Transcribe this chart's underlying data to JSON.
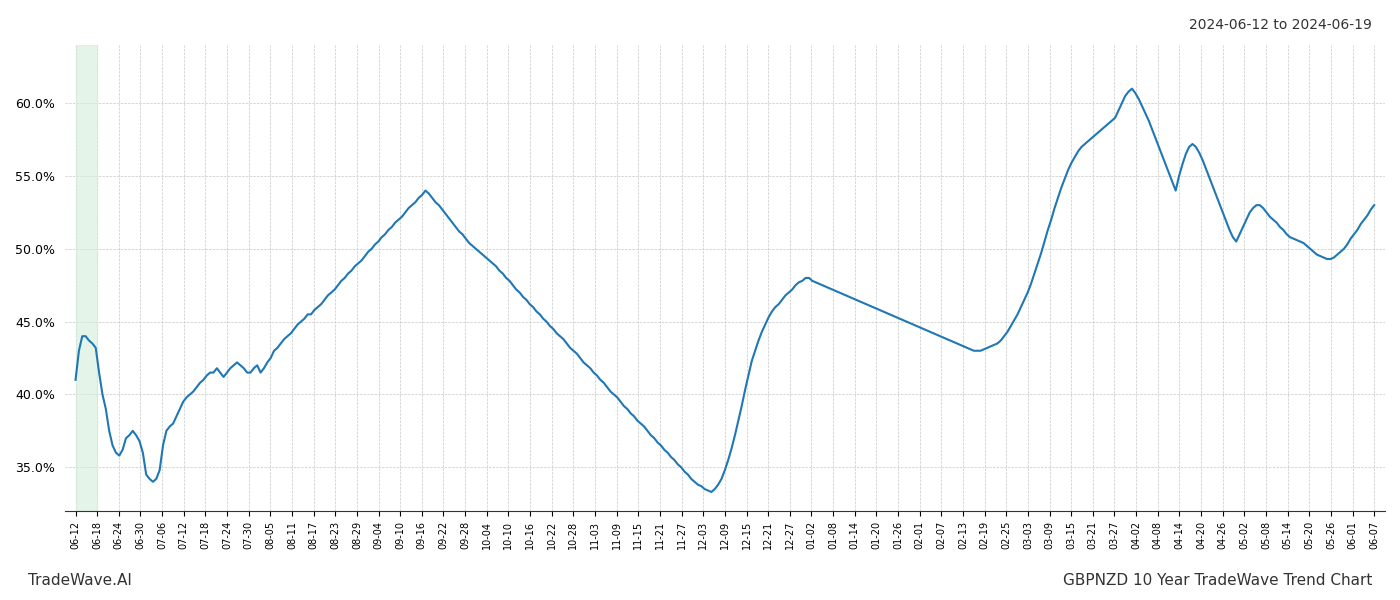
{
  "title_top_right": "2024-06-12 to 2024-06-19",
  "title_bottom_left": "TradeWave.AI",
  "title_bottom_right": "GBPNZD 10 Year TradeWave Trend Chart",
  "line_color": "#1f77b4",
  "line_width": 1.5,
  "background_color": "#ffffff",
  "grid_color": "#c8c8c8",
  "highlight_color": "#d4edda",
  "ylim": [
    0.32,
    0.64
  ],
  "yticks": [
    0.35,
    0.4,
    0.45,
    0.5,
    0.55,
    0.6
  ],
  "x_labels": [
    "06-12\n06-\n0",
    "06-18\n06-\n0",
    "06-24\n06-\n0",
    "06-30\n06-\n0",
    "07-06\n07-\n0",
    "07-12\n07-\n0",
    "07-18\n07-\n0",
    "07-24\n07-\n0",
    "07-30\n07-\n0",
    "08-05\n08-\n0",
    "08-11\n08-\n0",
    "08-17\n08-\n0",
    "08-23\n08-\n0",
    "08-29\n08-\n0",
    "09-04\n09-\n0",
    "09-10\n09-\n0",
    "09-16\n09-\n0",
    "09-22\n09-\n0",
    "09-28\n09-\n0",
    "10-04\n10-\n0",
    "10-10\n10-\n0",
    "10-16\n10-\n1",
    "10-22\n10-\n1",
    "10-28\n10-\n1",
    "11-03\n11-\n1",
    "11-09\n11-\n1",
    "11-15\n11-\n1",
    "11-21\n11-\n1",
    "11-27\n11-\n1",
    "12-03\n12-\n1",
    "12-09\n12-\n1",
    "12-15\n12-\n1",
    "12-21\n12-\n1",
    "12-27\n12-\n1",
    "01-02\n01-\n0",
    "01-08\n01-\n0",
    "01-14\n01-\n0",
    "01-20\n01-\n0",
    "01-26\n01-\n0",
    "02-01\n02-\n0",
    "02-07\n02-\n0",
    "02-13\n02-\n0",
    "02-19\n02-\n0",
    "02-25\n02-\n0",
    "03-03\n03-\n0",
    "03-09\n03-\n0",
    "03-15\n03-\n0",
    "03-21\n03-\n0",
    "03-27\n03-\n0",
    "04-02\n04-\n0",
    "04-08\n04-\n0",
    "04-14\n04-\n0",
    "04-20\n04-\n0",
    "04-26\n04-\n0",
    "05-02\n05-\n0",
    "05-08\n05-\n0",
    "05-14\n05-\n0",
    "05-20\n05-\n0",
    "05-26\n05-\n0",
    "06-01\n06-\n0",
    "06-07\n06-\n0"
  ],
  "x_labels_simple": [
    "06-12",
    "06-18",
    "06-24",
    "06-30",
    "07-06",
    "07-12",
    "07-18",
    "07-24",
    "07-30",
    "08-05",
    "08-11",
    "08-17",
    "08-23",
    "08-29",
    "09-04",
    "09-10",
    "09-16",
    "09-22",
    "09-28",
    "10-04",
    "10-10",
    "10-16",
    "10-22",
    "10-28",
    "11-03",
    "11-09",
    "11-15",
    "11-21",
    "11-27",
    "12-03",
    "12-09",
    "12-15",
    "12-21",
    "12-27",
    "01-02",
    "01-08",
    "01-14",
    "01-20",
    "01-26",
    "02-01",
    "02-07",
    "02-13",
    "02-19",
    "02-25",
    "03-03",
    "03-09",
    "03-15",
    "03-21",
    "03-27",
    "04-02",
    "04-08",
    "04-14",
    "04-20",
    "04-26",
    "05-02",
    "05-08",
    "05-14",
    "05-20",
    "05-26",
    "06-01",
    "06-07"
  ],
  "x_labels_year": [
    "0",
    "0",
    "0",
    "0",
    "0",
    "0",
    "0",
    "0",
    "0",
    "0",
    "0",
    "0",
    "0",
    "0",
    "0",
    "0",
    "0",
    "0",
    "0",
    "0",
    "0",
    "1",
    "1",
    "1",
    "1",
    "1",
    "1",
    "1",
    "1",
    "1",
    "1",
    "1",
    "1",
    "1",
    "0",
    "0",
    "0",
    "0",
    "0",
    "0",
    "0",
    "0",
    "0",
    "0",
    "0",
    "0",
    "0",
    "0",
    "0",
    "0",
    "0",
    "0",
    "0",
    "0",
    "0",
    "0",
    "0",
    "0",
    "0",
    "0",
    "0"
  ],
  "y_values": [
    0.41,
    0.43,
    0.44,
    0.44,
    0.437,
    0.435,
    0.432,
    0.415,
    0.4,
    0.39,
    0.375,
    0.365,
    0.36,
    0.358,
    0.362,
    0.37,
    0.372,
    0.375,
    0.372,
    0.368,
    0.36,
    0.345,
    0.342,
    0.34,
    0.342,
    0.348,
    0.365,
    0.375,
    0.378,
    0.38,
    0.385,
    0.39,
    0.395,
    0.398,
    0.4,
    0.402,
    0.405,
    0.408,
    0.41,
    0.413,
    0.415,
    0.415,
    0.418,
    0.415,
    0.412,
    0.415,
    0.418,
    0.42,
    0.422,
    0.42,
    0.418,
    0.415,
    0.415,
    0.418,
    0.42,
    0.415,
    0.418,
    0.422,
    0.425,
    0.43,
    0.432,
    0.435,
    0.438,
    0.44,
    0.442,
    0.445,
    0.448,
    0.45,
    0.452,
    0.455,
    0.455,
    0.458,
    0.46,
    0.462,
    0.465,
    0.468,
    0.47,
    0.472,
    0.475,
    0.478,
    0.48,
    0.483,
    0.485,
    0.488,
    0.49,
    0.492,
    0.495,
    0.498,
    0.5,
    0.503,
    0.505,
    0.508,
    0.51,
    0.513,
    0.515,
    0.518,
    0.52,
    0.522,
    0.525,
    0.528,
    0.53,
    0.532,
    0.535,
    0.537,
    0.54,
    0.538,
    0.535,
    0.532,
    0.53,
    0.527,
    0.524,
    0.521,
    0.518,
    0.515,
    0.512,
    0.51,
    0.507,
    0.504,
    0.502,
    0.5,
    0.498,
    0.496,
    0.494,
    0.492,
    0.49,
    0.488,
    0.485,
    0.483,
    0.48,
    0.478,
    0.475,
    0.472,
    0.47,
    0.467,
    0.465,
    0.462,
    0.46,
    0.457,
    0.455,
    0.452,
    0.45,
    0.447,
    0.445,
    0.442,
    0.44,
    0.438,
    0.435,
    0.432,
    0.43,
    0.428,
    0.425,
    0.422,
    0.42,
    0.418,
    0.415,
    0.413,
    0.41,
    0.408,
    0.405,
    0.402,
    0.4,
    0.398,
    0.395,
    0.392,
    0.39,
    0.387,
    0.385,
    0.382,
    0.38,
    0.378,
    0.375,
    0.372,
    0.37,
    0.367,
    0.365,
    0.362,
    0.36,
    0.357,
    0.355,
    0.352,
    0.35,
    0.347,
    0.345,
    0.342,
    0.34,
    0.338,
    0.337,
    0.335,
    0.334,
    0.333,
    0.335,
    0.338,
    0.342,
    0.348,
    0.355,
    0.363,
    0.372,
    0.382,
    0.392,
    0.403,
    0.413,
    0.423,
    0.43,
    0.437,
    0.443,
    0.448,
    0.453,
    0.457,
    0.46,
    0.462,
    0.465,
    0.468,
    0.47,
    0.472,
    0.475,
    0.477,
    0.478,
    0.48,
    0.48,
    0.478,
    0.477,
    0.476,
    0.475,
    0.474,
    0.473,
    0.472,
    0.471,
    0.47,
    0.469,
    0.468,
    0.467,
    0.466,
    0.465,
    0.464,
    0.463,
    0.462,
    0.461,
    0.46,
    0.459,
    0.458,
    0.457,
    0.456,
    0.455,
    0.454,
    0.453,
    0.452,
    0.451,
    0.45,
    0.449,
    0.448,
    0.447,
    0.446,
    0.445,
    0.444,
    0.443,
    0.442,
    0.441,
    0.44,
    0.439,
    0.438,
    0.437,
    0.436,
    0.435,
    0.434,
    0.433,
    0.432,
    0.431,
    0.43,
    0.43,
    0.43,
    0.431,
    0.432,
    0.433,
    0.434,
    0.435,
    0.437,
    0.44,
    0.443,
    0.447,
    0.451,
    0.455,
    0.46,
    0.465,
    0.47,
    0.476,
    0.483,
    0.49,
    0.497,
    0.505,
    0.513,
    0.52,
    0.528,
    0.535,
    0.542,
    0.548,
    0.554,
    0.559,
    0.563,
    0.567,
    0.57,
    0.572,
    0.574,
    0.576,
    0.578,
    0.58,
    0.582,
    0.584,
    0.586,
    0.588,
    0.59,
    0.595,
    0.6,
    0.605,
    0.608,
    0.61,
    0.607,
    0.603,
    0.598,
    0.593,
    0.588,
    0.582,
    0.576,
    0.57,
    0.564,
    0.558,
    0.552,
    0.546,
    0.54,
    0.55,
    0.558,
    0.565,
    0.57,
    0.572,
    0.57,
    0.566,
    0.561,
    0.555,
    0.549,
    0.543,
    0.537,
    0.531,
    0.525,
    0.519,
    0.513,
    0.508,
    0.505,
    0.51,
    0.515,
    0.52,
    0.525,
    0.528,
    0.53,
    0.53,
    0.528,
    0.525,
    0.522,
    0.52,
    0.518,
    0.515,
    0.513,
    0.51,
    0.508,
    0.507,
    0.506,
    0.505,
    0.504,
    0.502,
    0.5,
    0.498,
    0.496,
    0.495,
    0.494,
    0.493,
    0.493,
    0.494,
    0.496,
    0.498,
    0.5,
    0.503,
    0.507,
    0.51,
    0.513,
    0.517,
    0.52,
    0.523,
    0.527,
    0.53
  ]
}
